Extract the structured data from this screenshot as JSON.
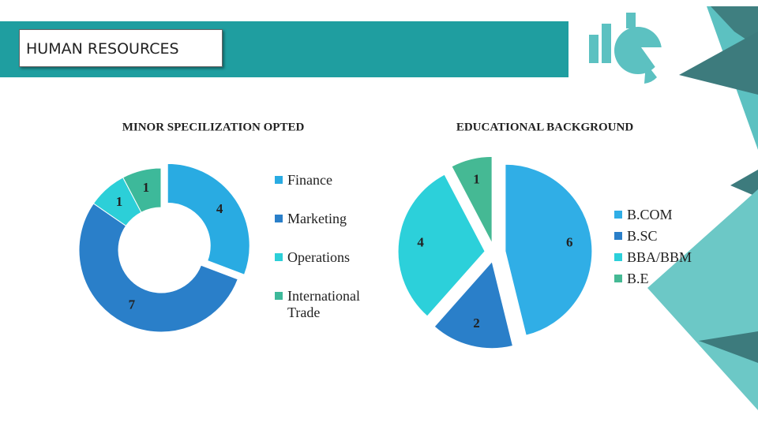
{
  "header": {
    "title": "HUMAN RESOURCES"
  },
  "chart_data": [
    {
      "type": "donut",
      "title": "MINOR SPECILIZATION OPTED",
      "categories": [
        "Finance",
        "Marketing",
        "Operations",
        "International Trade"
      ],
      "values": [
        4,
        7,
        1,
        1
      ],
      "colors": [
        "#29abe2",
        "#2a7fc9",
        "#2ccfd8",
        "#3db99a"
      ]
    },
    {
      "type": "pie",
      "title": "EDUCATIONAL BACKGROUND",
      "categories": [
        "B.COM",
        "B.SC",
        "BBA/BBM",
        "B.E"
      ],
      "values": [
        6,
        2,
        4,
        1
      ],
      "colors": [
        "#30aee6",
        "#2a7fc9",
        "#2cd0da",
        "#45b994"
      ]
    }
  ]
}
